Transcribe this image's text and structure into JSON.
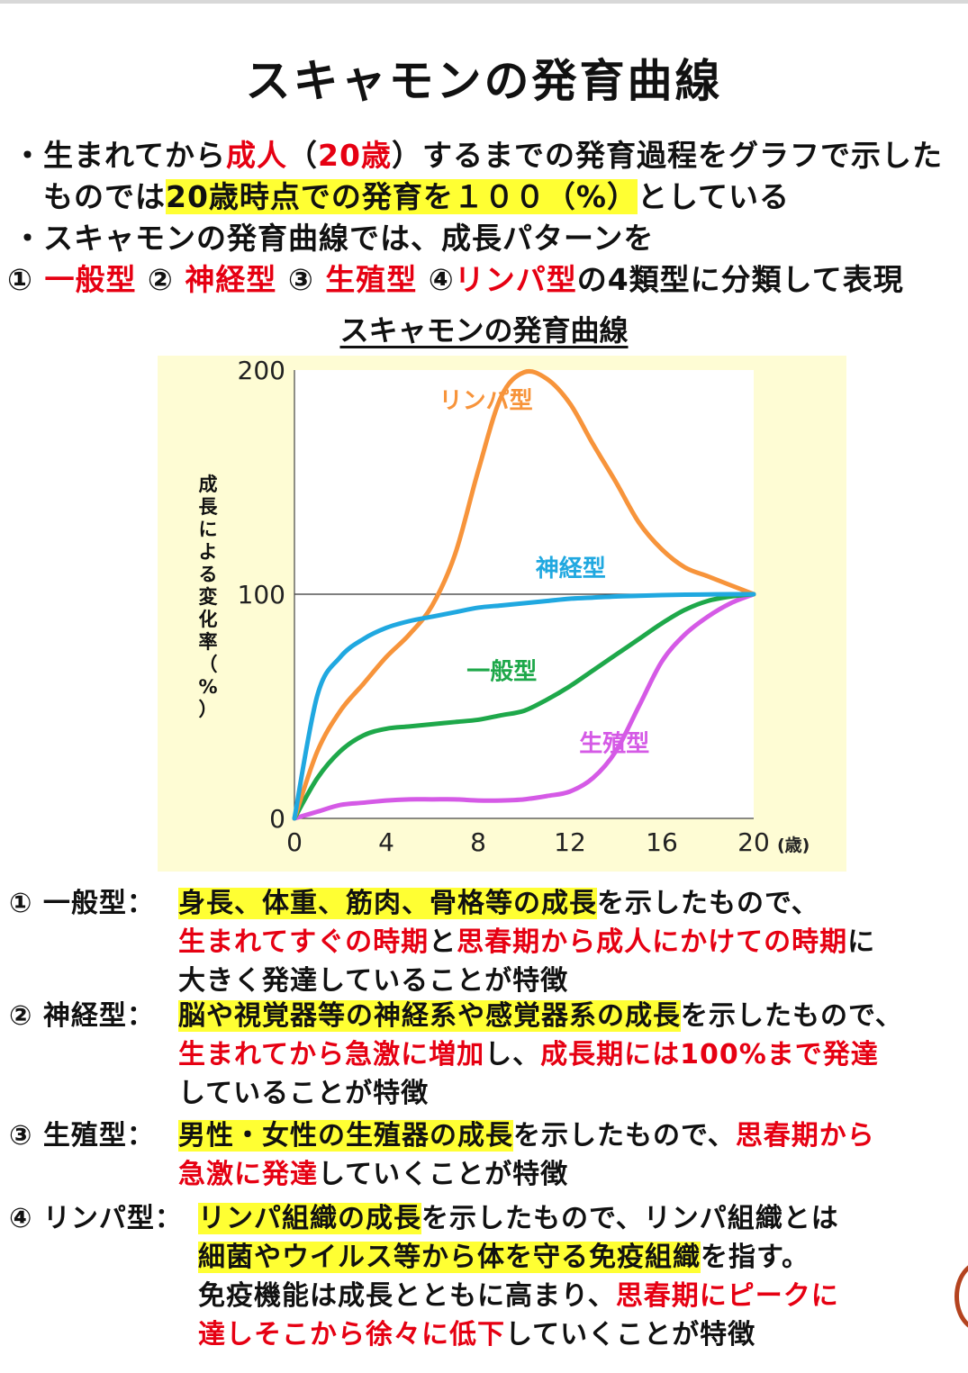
{
  "title": "スキャモンの発育曲線",
  "intro": {
    "line1": {
      "a": "・生まれてから",
      "b": "成人",
      "c": "（",
      "d": "20歳",
      "e": "）するまでの発育過程をグラフで示した"
    },
    "line2": {
      "a": "ものでは",
      "b": "20歳時点での発育を１００（%）",
      "c": "としている"
    },
    "line3": "・スキャモンの発育曲線では、成長パターンを",
    "line4": {
      "n1": "① ",
      "t1": "一般型",
      "n2": " ② ",
      "t2": "神経型",
      "n3": " ③ ",
      "t3": "生殖型",
      "n4": " ④",
      "t4": "リンパ型",
      "tail": "の4類型に分類して表現"
    }
  },
  "chart_title": "スキャモンの発育曲線",
  "chart_data": {
    "type": "line",
    "ylabel": "成長による変化率（%）",
    "xunit": "(歳)",
    "xlim": [
      0,
      20
    ],
    "ylim": [
      0,
      200
    ],
    "xticks": [
      0,
      4,
      8,
      12,
      16,
      20
    ],
    "yticks": [
      0,
      100,
      200
    ],
    "reference_line": 100,
    "series": [
      {
        "name": "リンパ型",
        "color": "#f7943b",
        "x": [
          0,
          1,
          2,
          3,
          4,
          5,
          6,
          7,
          8,
          9,
          10,
          11,
          12,
          13,
          14,
          15,
          16,
          17,
          18,
          19,
          20
        ],
        "y": [
          0,
          30,
          48,
          60,
          72,
          82,
          95,
          118,
          155,
          188,
          199,
          196,
          185,
          167,
          150,
          132,
          120,
          112,
          108,
          104,
          100
        ]
      },
      {
        "name": "神経型",
        "color": "#20a8e0",
        "x": [
          0,
          1,
          2,
          3,
          4,
          5,
          6,
          7,
          8,
          9,
          10,
          11,
          12,
          13,
          14,
          15,
          16,
          17,
          18,
          19,
          20
        ],
        "y": [
          0,
          55,
          72,
          80,
          85,
          88,
          90,
          92,
          94,
          95,
          96,
          97,
          98,
          98.5,
          99,
          99.3,
          99.6,
          99.8,
          99.9,
          100,
          100
        ]
      },
      {
        "name": "一般型",
        "color": "#1ea84a",
        "x": [
          0,
          1,
          2,
          3,
          4,
          5,
          6,
          7,
          8,
          9,
          10,
          11,
          12,
          13,
          14,
          15,
          16,
          17,
          18,
          19,
          20
        ],
        "y": [
          0,
          18,
          30,
          37,
          40,
          41,
          42,
          43,
          44,
          46,
          48,
          53,
          59,
          66,
          73,
          80,
          87,
          93,
          97,
          99,
          100
        ]
      },
      {
        "name": "生殖型",
        "color": "#d55ae6",
        "x": [
          0,
          1,
          2,
          3,
          4,
          5,
          6,
          7,
          8,
          9,
          10,
          11,
          12,
          13,
          14,
          15,
          16,
          17,
          18,
          19,
          20
        ],
        "y": [
          0,
          3,
          6,
          7,
          8,
          8.5,
          8.5,
          8.5,
          8,
          8,
          8.5,
          10,
          12,
          18,
          30,
          50,
          70,
          82,
          90,
          96,
          100
        ]
      }
    ],
    "annotations": [
      {
        "text": "リンパ型",
        "color": "#f7943b",
        "x": 6.3,
        "y": 183
      },
      {
        "text": "神経型",
        "color": "#20a8e0",
        "x": 10.5,
        "y": 108
      },
      {
        "text": "一般型",
        "color": "#1ea84a",
        "x": 7.5,
        "y": 62
      },
      {
        "text": "生殖型",
        "color": "#d55ae6",
        "x": 12.4,
        "y": 30
      }
    ]
  },
  "desc": [
    {
      "label": "① 一般型：",
      "lines": [
        [
          {
            "t": "身長、体重、筋肉、骨格等の成長",
            "s": "hl"
          },
          {
            "t": "を示したもので、",
            "s": ""
          }
        ],
        [
          {
            "t": "生まれてすぐの時期",
            "s": "red"
          },
          {
            "t": "と",
            "s": ""
          },
          {
            "t": "思春期から成人にかけての時期",
            "s": "red"
          },
          {
            "t": "に",
            "s": ""
          }
        ],
        [
          {
            "t": "大きく発達していることが特徴",
            "s": ""
          }
        ]
      ]
    },
    {
      "label": "② 神経型：",
      "lines": [
        [
          {
            "t": "脳や視覚器等の神経系や感覚器系の成長",
            "s": "hl"
          },
          {
            "t": "を示したもので、",
            "s": ""
          }
        ],
        [
          {
            "t": "生まれてから急激に増加",
            "s": "red"
          },
          {
            "t": "し、",
            "s": ""
          },
          {
            "t": "成長期には100%まで発達",
            "s": "red"
          }
        ],
        [
          {
            "t": "していることが特徴",
            "s": ""
          }
        ]
      ]
    },
    {
      "label": "③ 生殖型：",
      "lines": [
        [
          {
            "t": "男性・女性の生殖器の成長",
            "s": "hl"
          },
          {
            "t": "を示したもので、",
            "s": ""
          },
          {
            "t": "思春期から",
            "s": "red"
          }
        ],
        [
          {
            "t": "急激に発達",
            "s": "red"
          },
          {
            "t": "していくことが特徴",
            "s": ""
          }
        ]
      ]
    },
    {
      "label": "④ リンパ型：",
      "lines": [
        [
          {
            "t": "リンパ組織の成長",
            "s": "hl"
          },
          {
            "t": "を示したもので、リンパ組織とは",
            "s": ""
          }
        ],
        [
          {
            "t": "細菌やウイルス等から体を守る免疫組織",
            "s": "hl"
          },
          {
            "t": "を指す。",
            "s": ""
          }
        ],
        [
          {
            "t": "免疫機能は成長とともに高まり、",
            "s": ""
          },
          {
            "t": "思春期にピークに",
            "s": "red"
          }
        ],
        [
          {
            "t": "達しそこから徐々に低下",
            "s": "red"
          },
          {
            "t": "していくことが特徴",
            "s": ""
          }
        ]
      ]
    }
  ]
}
